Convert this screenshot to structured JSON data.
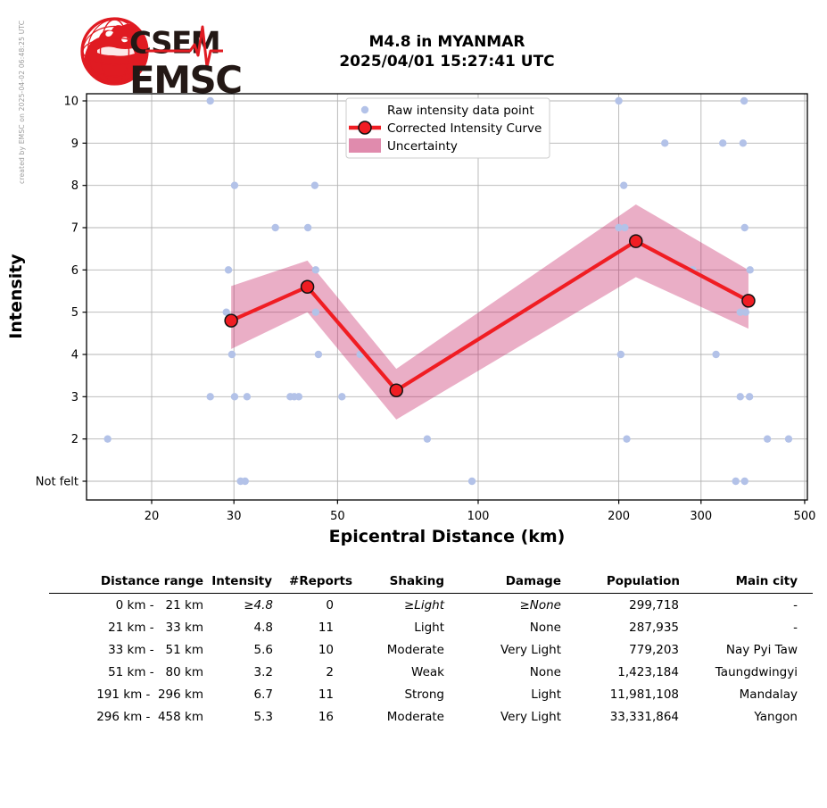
{
  "credit": "created by EMSC on 2025-04-02 06:48:25 UTC",
  "logo": {
    "top": "CSEM",
    "bottom": "EMSC"
  },
  "header": {
    "title": "M4.8 in MYANMAR",
    "subtitle": "2025/04/01 15:27:41 UTC"
  },
  "chart_data": {
    "type": "scatter",
    "title": "",
    "xlabel": "Epicentral Distance (km)",
    "ylabel": "Intensity",
    "x_scale": "log",
    "xlim": [
      14.5,
      503
    ],
    "ylim": [
      0.55,
      10.17
    ],
    "x_ticks": [
      20,
      30,
      50,
      100,
      200,
      300,
      500
    ],
    "y_ticks": [
      {
        "value": 10,
        "label": "10"
      },
      {
        "value": 9,
        "label": "9"
      },
      {
        "value": 8,
        "label": "8"
      },
      {
        "value": 7,
        "label": "7"
      },
      {
        "value": 6,
        "label": "6"
      },
      {
        "value": 5,
        "label": "5"
      },
      {
        "value": 4,
        "label": "4"
      },
      {
        "value": 3,
        "label": "3"
      },
      {
        "value": 2,
        "label": "2"
      },
      {
        "value": 1,
        "label": "Not felt"
      }
    ],
    "grid": true,
    "legend_position": "upper center",
    "legend": [
      {
        "label": "Raw intensity data point",
        "symbol": "point"
      },
      {
        "label": "Corrected Intensity Curve",
        "symbol": "line-marker"
      },
      {
        "label": "Uncertainty",
        "symbol": "patch"
      }
    ],
    "series": [
      {
        "name": "Raw intensity data point",
        "type": "scatter",
        "points": [
          [
            26.7,
            10
          ],
          [
            200,
            10
          ],
          [
            371,
            10
          ],
          [
            251,
            9
          ],
          [
            334,
            9
          ],
          [
            369,
            9
          ],
          [
            30.1,
            8
          ],
          [
            44.7,
            8
          ],
          [
            205,
            8
          ],
          [
            36.8,
            7
          ],
          [
            43.2,
            7
          ],
          [
            200,
            7
          ],
          [
            206,
            7
          ],
          [
            372,
            7
          ],
          [
            29.2,
            6
          ],
          [
            44.9,
            6
          ],
          [
            288,
            6
          ],
          [
            382,
            6
          ],
          [
            28.9,
            5
          ],
          [
            44.9,
            5
          ],
          [
            364,
            5
          ],
          [
            374,
            5
          ],
          [
            29.7,
            4
          ],
          [
            45.5,
            4
          ],
          [
            55.9,
            4
          ],
          [
            202,
            4
          ],
          [
            323,
            4
          ],
          [
            26.7,
            3
          ],
          [
            30.1,
            3
          ],
          [
            32,
            3
          ],
          [
            39.6,
            3
          ],
          [
            40.4,
            3
          ],
          [
            41.3,
            3
          ],
          [
            51.1,
            3
          ],
          [
            364,
            3
          ],
          [
            381,
            3
          ],
          [
            16.1,
            2
          ],
          [
            77.8,
            2
          ],
          [
            208,
            2
          ],
          [
            416,
            2
          ],
          [
            462,
            2
          ],
          [
            31,
            1
          ],
          [
            31.7,
            1
          ],
          [
            97,
            1
          ],
          [
            356,
            1
          ],
          [
            372,
            1
          ]
        ]
      },
      {
        "name": "Corrected Intensity Curve",
        "type": "line",
        "points": [
          [
            29.6,
            4.8
          ],
          [
            43.1,
            5.6
          ],
          [
            66.8,
            3.15
          ],
          [
            217.6,
            6.68
          ],
          [
            379,
            5.27
          ]
        ]
      },
      {
        "name": "Uncertainty",
        "type": "band",
        "upper": [
          [
            29.6,
            5.62
          ],
          [
            43.1,
            6.22
          ],
          [
            66.8,
            3.66
          ],
          [
            217.6,
            7.55
          ],
          [
            379,
            6.0
          ]
        ],
        "lower": [
          [
            29.6,
            4.13
          ],
          [
            43.1,
            5.0
          ],
          [
            66.8,
            2.46
          ],
          [
            217.6,
            5.83
          ],
          [
            379,
            4.61
          ]
        ]
      }
    ],
    "colors": {
      "raw_point": "#b3c2e8",
      "curve": "#f01d23",
      "marker_fill": "#f01d23",
      "marker_edge": "#111111",
      "band": "#c2185b",
      "band_opacity": 0.35,
      "grid": "#b4b4b4",
      "axis": "#000000"
    }
  },
  "table": {
    "headers": [
      "Distance range",
      "Intensity",
      "#Reports",
      "Shaking",
      "Damage",
      "Population",
      "Main city"
    ],
    "rows": [
      {
        "cells": [
          "0 km -   21 km",
          "≥4.8",
          "0",
          "≥Light",
          "≥None",
          "299,718",
          "-"
        ],
        "italic_cols": [
          1,
          3,
          4
        ]
      },
      {
        "cells": [
          "21 km -   33 km",
          "4.8",
          "11",
          "Light",
          "None",
          "287,935",
          "-"
        ],
        "italic_cols": []
      },
      {
        "cells": [
          "33 km -   51 km",
          "5.6",
          "10",
          "Moderate",
          "Very Light",
          "779,203",
          "Nay Pyi Taw"
        ],
        "italic_cols": []
      },
      {
        "cells": [
          "51 km -   80 km",
          "3.2",
          "2",
          "Weak",
          "None",
          "1,423,184",
          "Taungdwingyi"
        ],
        "italic_cols": []
      },
      {
        "cells": [
          "191 km -  296 km",
          "6.7",
          "11",
          "Strong",
          "Light",
          "11,981,108",
          "Mandalay"
        ],
        "italic_cols": []
      },
      {
        "cells": [
          "296 km -  458 km",
          "5.3",
          "16",
          "Moderate",
          "Very Light",
          "33,331,864",
          "Yangon"
        ],
        "italic_cols": []
      }
    ]
  },
  "brand_colors": {
    "red": "#e01b22",
    "dark": "#231815"
  }
}
